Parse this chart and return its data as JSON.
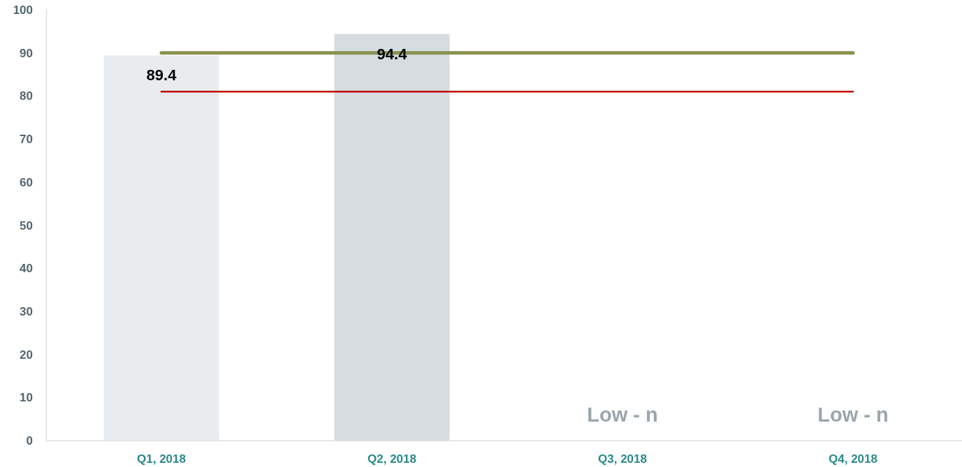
{
  "chart_data": {
    "type": "bar",
    "categories": [
      "Q1, 2018",
      "Q2, 2018",
      "Q3, 2018",
      "Q4, 2018"
    ],
    "series": [
      {
        "colors": [
          "#e8ecee",
          "#d6dce0",
          null,
          null
        ],
        "values": [
          89.4,
          94.4,
          null,
          null
        ],
        "value_labels": [
          "89.4",
          "94.4",
          null,
          null
        ]
      },
      {
        "type": "line",
        "color": "#8a9150",
        "values": [
          90,
          90,
          90,
          90
        ]
      },
      {
        "type": "line",
        "color": "#c00000",
        "values": [
          81,
          81,
          81,
          81
        ]
      }
    ],
    "ylim": [
      0,
      100
    ],
    "yticks": [
      0,
      10,
      20,
      30,
      40,
      50,
      60,
      70,
      80,
      90,
      100
    ],
    "annotations": [
      "Low - n",
      "Low - n"
    ]
  }
}
